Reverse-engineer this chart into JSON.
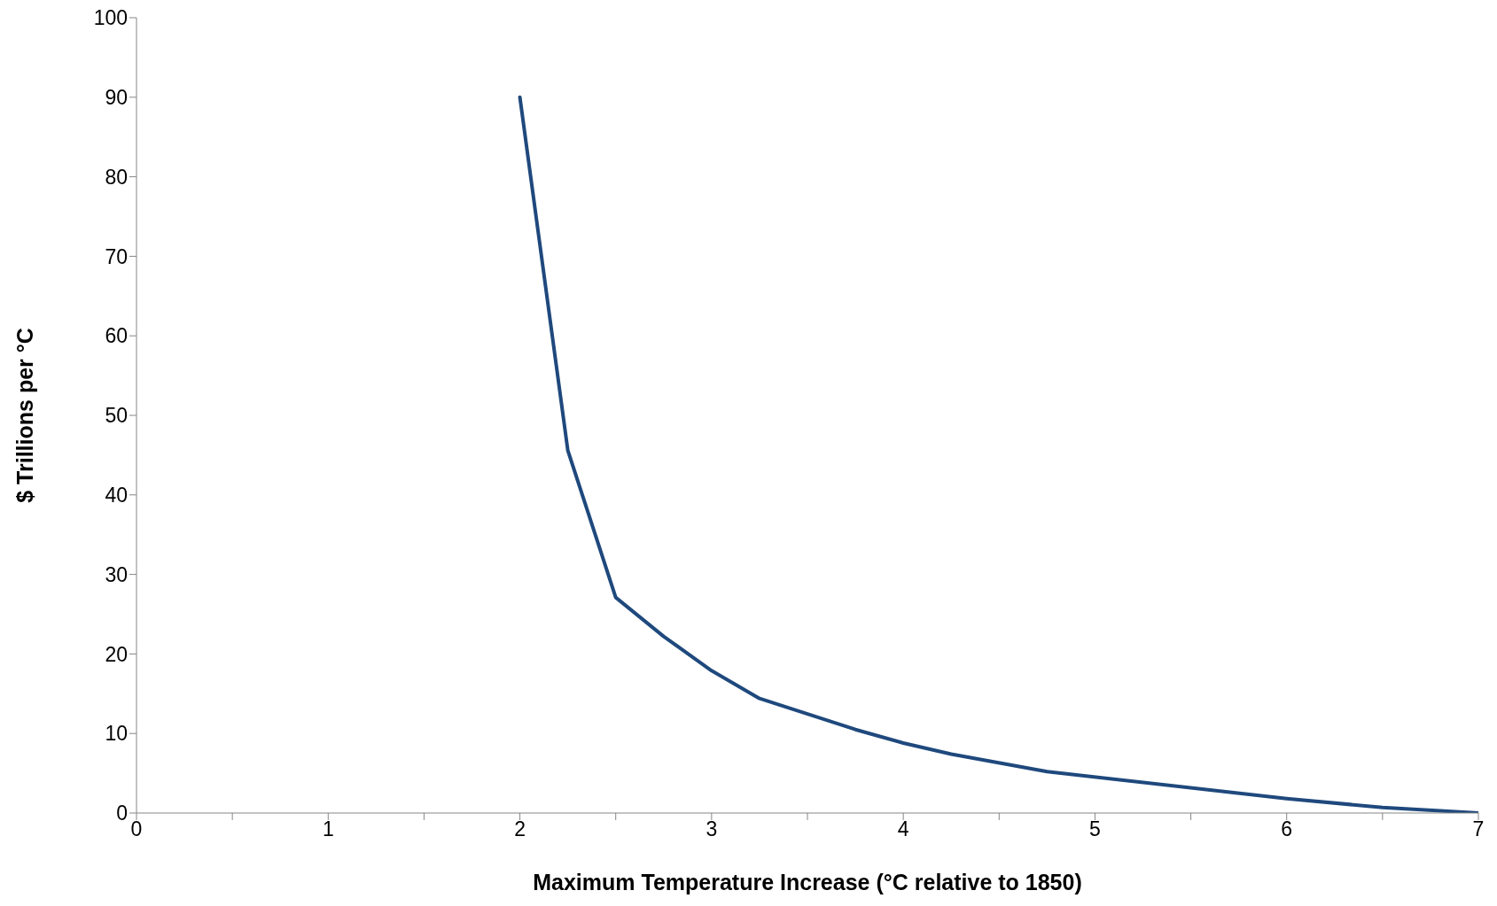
{
  "chart_data": {
    "type": "line",
    "xlabel": "Maximum Temperature Increase (°C relative to 1850)",
    "ylabel": "$ Trillions per °C",
    "x": [
      2,
      2.25,
      2.5,
      2.75,
      3,
      3.25,
      3.75,
      4,
      4.25,
      4.75,
      6,
      6.5,
      7
    ],
    "series": [
      {
        "color": "#1f497d",
        "values": [
          90,
          45.6,
          27.1,
          22.2,
          17.9,
          14.4,
          10.5,
          8.8,
          7.4,
          5.2,
          1.8,
          0.7,
          0
        ]
      }
    ],
    "xlim": [
      0,
      7
    ],
    "xticks": [
      0,
      {
        "value": 0.5,
        "label": null
      },
      1,
      {
        "value": 1.5,
        "label": null
      },
      2,
      {
        "value": 2.5,
        "label": null
      },
      3,
      {
        "value": 3.5,
        "label": null
      },
      4,
      {
        "value": 4.5,
        "label": null
      },
      5,
      {
        "value": 5.5,
        "label": null
      },
      6,
      {
        "value": 6.5,
        "label": null
      },
      7
    ],
    "ylim": [
      0,
      100
    ],
    "yticks": [
      0,
      10,
      20,
      30,
      40,
      50,
      60,
      70,
      80,
      90,
      100
    ],
    "grid": false,
    "legend": false,
    "marker": "none",
    "line_style": "solid"
  }
}
